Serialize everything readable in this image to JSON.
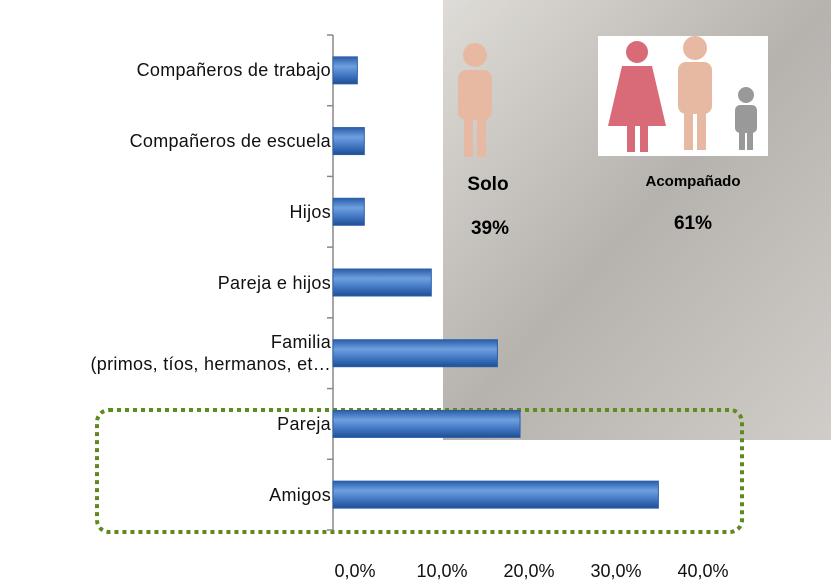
{
  "chart_data": {
    "type": "bar",
    "orientation": "horizontal",
    "categories": [
      "Compañeros de trabajo",
      "Compañeros de escuela",
      "Hijos",
      "Pareja e hijos",
      "Familia\n(primos, tíos, hermanos, et…",
      "Pareja",
      "Amigos"
    ],
    "values": [
      2.8,
      3.6,
      3.6,
      11.3,
      18.9,
      21.5,
      37.4
    ],
    "color": "#3f74c0",
    "xlim": [
      0,
      40
    ],
    "xticks": [
      {
        "value": 0,
        "label": "0,0%"
      },
      {
        "value": 10,
        "label": "10,0%"
      },
      {
        "value": 20,
        "label": "20,0%"
      },
      {
        "value": 30,
        "label": "30,0%"
      },
      {
        "value": 40,
        "label": "40,0%"
      }
    ],
    "grid": false,
    "annotations": [
      {
        "label": "Solo",
        "value": "39%"
      },
      {
        "label": "Acompañado",
        "value": "61%"
      }
    ]
  }
}
